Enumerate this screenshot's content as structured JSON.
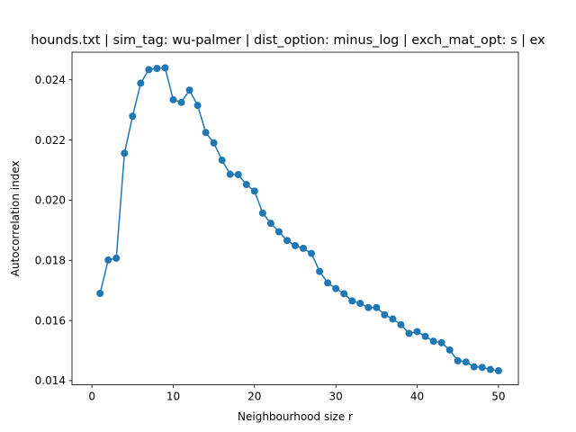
{
  "chart_data": {
    "type": "line",
    "title": "hounds.txt | sim_tag: wu-palmer | dist_option: minus_log | exch_mat_opt: s | ex",
    "xlabel": "Neighbourhood size r",
    "ylabel": "Autocorrelation index",
    "xlim": [
      -2.45,
      52.45
    ],
    "ylim": [
      0.01386,
      0.02492
    ],
    "xticks": [
      0,
      10,
      20,
      30,
      40,
      50
    ],
    "xtick_labels": [
      "0",
      "10",
      "20",
      "30",
      "40",
      "50"
    ],
    "yticks": [
      0.014,
      0.016,
      0.018,
      0.02,
      0.022,
      0.024
    ],
    "ytick_labels": [
      "0.014",
      "0.016",
      "0.018",
      "0.020",
      "0.022",
      "0.024"
    ],
    "grid": false,
    "series": [
      {
        "color": "#1f77b4",
        "marker": "circle",
        "x": [
          1,
          2,
          3,
          4,
          5,
          6,
          7,
          8,
          9,
          10,
          11,
          12,
          13,
          14,
          15,
          16,
          17,
          18,
          19,
          20,
          21,
          22,
          23,
          24,
          25,
          26,
          27,
          28,
          29,
          30,
          31,
          32,
          33,
          34,
          35,
          36,
          37,
          38,
          39,
          40,
          41,
          42,
          43,
          44,
          45,
          46,
          47,
          48,
          49,
          50
        ],
        "y": [
          0.0169,
          0.01801,
          0.01807,
          0.02156,
          0.02279,
          0.02389,
          0.02434,
          0.02438,
          0.0244,
          0.02334,
          0.02325,
          0.02366,
          0.02315,
          0.02225,
          0.0219,
          0.02133,
          0.02086,
          0.02085,
          0.02052,
          0.0203,
          0.01957,
          0.01923,
          0.01895,
          0.01866,
          0.01849,
          0.0184,
          0.01823,
          0.01763,
          0.01725,
          0.01706,
          0.01689,
          0.01665,
          0.01657,
          0.01643,
          0.01643,
          0.01619,
          0.01605,
          0.01586,
          0.01557,
          0.01563,
          0.01547,
          0.01531,
          0.01526,
          0.01502,
          0.01466,
          0.01462,
          0.01446,
          0.01444,
          0.01437,
          0.01433
        ]
      }
    ]
  }
}
